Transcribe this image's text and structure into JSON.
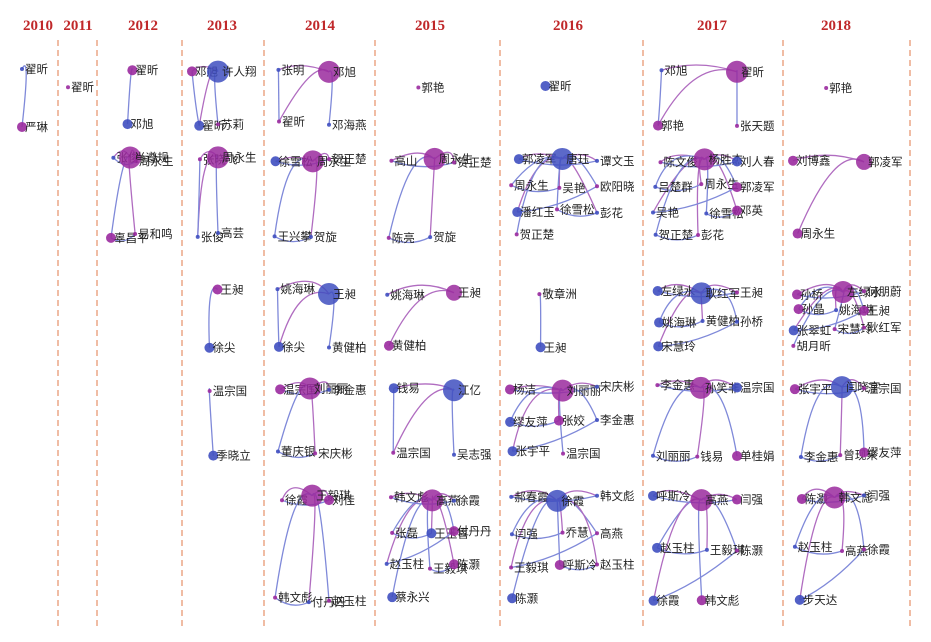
{
  "colors": {
    "year_label": "#c0282a",
    "divider": "#e07a4a",
    "node_blue": "#3f4fc0",
    "node_purple": "#9a2a9e",
    "edge_blue": "#7f89d9",
    "edge_purple": "#b06cc0",
    "label": "#1f1f1f"
  },
  "years": [
    "2010",
    "2011",
    "2012",
    "2013",
    "2014",
    "2015",
    "2016",
    "2017",
    "2018"
  ],
  "clusters": [
    {
      "year": "2010",
      "row": 1,
      "members": [
        "翟昕",
        "严琳"
      ]
    },
    {
      "year": "2011",
      "row": 1,
      "members": [
        "翟昕"
      ]
    },
    {
      "year": "2012",
      "row": 1,
      "members": [
        "翟昕",
        "邓旭"
      ]
    },
    {
      "year": "2012",
      "row": 2,
      "members": [
        "张俊",
        "肖遵规",
        "周永生",
        "辜昌平",
        "易和鸣"
      ]
    },
    {
      "year": "2013",
      "row": 1,
      "members": [
        "邓旭",
        "许人翔",
        "翟昕",
        "苏莉"
      ]
    },
    {
      "year": "2013",
      "row": 2,
      "members": [
        "张晓飞",
        "周永生",
        "张俊",
        "高芸"
      ]
    },
    {
      "year": "2013",
      "row": 3,
      "members": [
        "王昶",
        "徐尖"
      ]
    },
    {
      "year": "2013",
      "row": 4,
      "members": [
        "温宗国",
        "季晓立"
      ]
    },
    {
      "year": "2014",
      "row": 1,
      "members": [
        "张明",
        "邓旭",
        "翟昕",
        "邓海燕"
      ]
    },
    {
      "year": "2014",
      "row": 2,
      "members": [
        "徐雪松",
        "周永生",
        "贺正楚",
        "王兴攀",
        "贺旋"
      ]
    },
    {
      "year": "2014",
      "row": 3,
      "members": [
        "姚海琳",
        "王昶",
        "徐尖",
        "黄健柏"
      ]
    },
    {
      "year": "2014",
      "row": 4,
      "members": [
        "温宗国",
        "刘丽丽",
        "李金惠",
        "董庆银",
        "宋庆彬"
      ]
    },
    {
      "year": "2014",
      "row": 5,
      "members": [
        "徐霞",
        "王毅琪",
        "刘佳",
        "韩文彪",
        "付丹丹",
        "赵玉柱"
      ]
    },
    {
      "year": "2015",
      "row": 1,
      "members": [
        "郭艳"
      ]
    },
    {
      "year": "2015",
      "row": 2,
      "members": [
        "高山",
        "周永生",
        "贺正楚",
        "陈亮",
        "贺旋"
      ]
    },
    {
      "year": "2015",
      "row": 3,
      "members": [
        "姚海琳",
        "王昶",
        "黄健柏"
      ]
    },
    {
      "year": "2015",
      "row": 4,
      "members": [
        "钱易",
        "江亿",
        "温宗国",
        "吴志强"
      ]
    },
    {
      "year": "2015",
      "row": 5,
      "members": [
        "韩文彪",
        "高燕",
        "徐霞",
        "张磊",
        "王玉喜",
        "付丹丹",
        "赵玉柱",
        "王毅琪",
        "陈灏",
        "蔡永兴"
      ]
    },
    {
      "year": "2016",
      "row": 1,
      "members": [
        "翟昕"
      ]
    },
    {
      "year": "2016",
      "row": 2,
      "members": [
        "郭凌军",
        "唐珏",
        "谭文玉",
        "周永生",
        "吴艳",
        "欧阳晓",
        "潘红玉",
        "徐雪松",
        "彭花",
        "贺正楚"
      ]
    },
    {
      "year": "2016",
      "row": 3,
      "members": [
        "敬章洲",
        "王昶"
      ]
    },
    {
      "year": "2016",
      "row": 4,
      "members": [
        "杨洁",
        "刘丽丽",
        "宋庆彬",
        "缪友萍",
        "张姣",
        "李金惠",
        "张宇平",
        "温宗国"
      ]
    },
    {
      "year": "2016",
      "row": 5,
      "members": [
        "郝春霞",
        "徐霞",
        "韩文彪",
        "闫强",
        "乔慧",
        "高燕",
        "王毅琪",
        "呼斯冷",
        "赵玉柱",
        "陈灏"
      ]
    },
    {
      "year": "2017",
      "row": 1,
      "members": [
        "邓旭",
        "翟昕",
        "郭艳",
        "张天题"
      ]
    },
    {
      "year": "2017",
      "row": 2,
      "members": [
        "陈文俊",
        "杨胜杰",
        "刘人春",
        "吕楚群",
        "周永生",
        "郭凌军",
        "吴艳",
        "徐雪松",
        "邓英",
        "贺正楚",
        "彭花"
      ]
    },
    {
      "year": "2017",
      "row": 3,
      "members": [
        "左绿水",
        "耿红军",
        "王昶",
        "姚海琳",
        "黄健柏",
        "孙桥",
        "宋慧玲"
      ]
    },
    {
      "year": "2017",
      "row": 4,
      "members": [
        "李金惠",
        "孙笑非",
        "温宗国",
        "刘丽丽",
        "钱易",
        "单桂娟"
      ]
    },
    {
      "year": "2017",
      "row": 5,
      "members": [
        "呼斯冷",
        "高燕",
        "闫强",
        "赵玉柱",
        "王毅琪",
        "陈灏",
        "徐霞",
        "韩文彪"
      ]
    },
    {
      "year": "2018",
      "row": 1,
      "members": [
        "郭艳"
      ]
    },
    {
      "year": "2018",
      "row": 2,
      "members": [
        "刘博鑫",
        "郭凌军",
        "周永生"
      ]
    },
    {
      "year": "2018",
      "row": 3,
      "members": [
        "孙桥",
        "左绿水",
        "何朋蔚",
        "孙晶",
        "姚海琳",
        "王昶",
        "张翠虹",
        "宋慧玲",
        "耿红军",
        "胡月昕"
      ]
    },
    {
      "year": "2018",
      "row": 4,
      "members": [
        "张宇平",
        "闫晓宇",
        "温宗国",
        "李金惠",
        "曾现来",
        "缪友萍"
      ]
    },
    {
      "year": "2018",
      "row": 5,
      "members": [
        "陈灏",
        "韩文彪",
        "闫强",
        "赵玉柱",
        "高燕",
        "徐霞",
        "步天达"
      ]
    }
  ]
}
